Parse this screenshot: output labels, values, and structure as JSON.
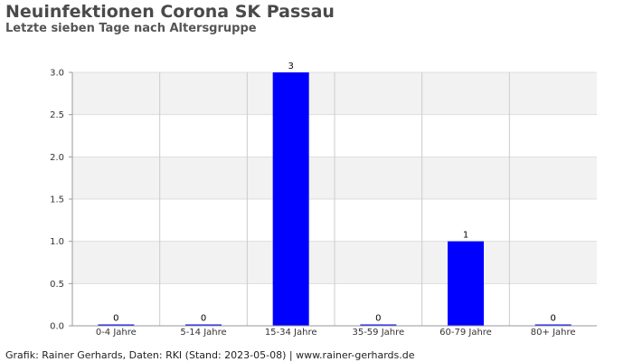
{
  "chart_data": {
    "type": "bar",
    "title": "Neuinfektionen Corona SK Passau",
    "subtitle": "Letzte sieben Tage nach Altersgruppe",
    "categories": [
      "0-4 Jahre",
      "5-14 Jahre",
      "15-34 Jahre",
      "35-59 Jahre",
      "60-79 Jahre",
      "80+ Jahre"
    ],
    "values": [
      0,
      0,
      3,
      0,
      1,
      0
    ],
    "data_labels": [
      "0",
      "0",
      "3",
      "0",
      "1",
      "0"
    ],
    "ylim": [
      0,
      3.0
    ],
    "yticks": [
      "0.0",
      "0.5",
      "1.0",
      "1.5",
      "2.0",
      "2.5",
      "3.0"
    ],
    "xlabel": "",
    "ylabel": "",
    "grid": true,
    "bar_color": "#0000ff",
    "band_color": "#f2f2f2"
  },
  "footer": "Grafik: Rainer Gerhards, Daten: RKI (Stand: 2023-05-08) | www.rainer-gerhards.de"
}
